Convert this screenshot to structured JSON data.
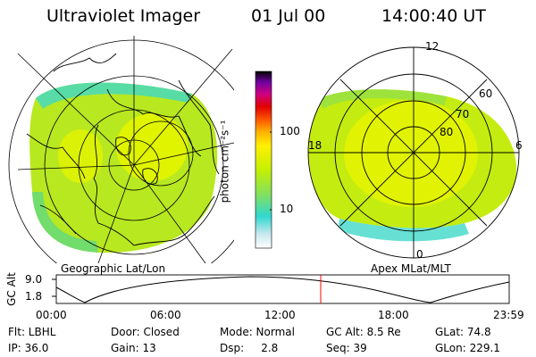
{
  "header": {
    "title": "Ultraviolet Imager",
    "date": "01 Jul 00",
    "time": "14:00:40 UT"
  },
  "colorbar": {
    "unit": "photon cm⁻²s⁻¹",
    "ticks": [
      "100",
      "10"
    ]
  },
  "geo_panel": {
    "label": "Geographic Lat/Lon"
  },
  "apex_panel": {
    "label": "Apex MLat/MLT",
    "mlt_labels": [
      "12",
      "18",
      "6",
      "0"
    ],
    "lat_labels": [
      "60",
      "70",
      "80"
    ]
  },
  "altitude": {
    "axis_label": "GC Alt",
    "yticks": [
      "9.0",
      "1.8"
    ],
    "xticks": [
      "00:00",
      "06:00",
      "12:00",
      "18:00",
      "23:59"
    ],
    "marker_hour": 14.011,
    "marker_color": "#ff0000"
  },
  "info": {
    "row1": [
      "Flt: LBHL",
      "Door: Closed",
      "Mode: Normal",
      "GC Alt: 8.5 Re",
      "GLat:  74.8"
    ],
    "row2": [
      "IP: 36.0",
      "Gain: 13",
      "Dsp:     2.8",
      "Seq: 39",
      "GLon: 229.1"
    ]
  }
}
